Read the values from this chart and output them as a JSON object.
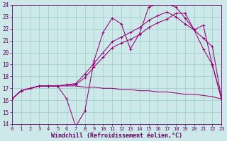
{
  "bg_color": "#cce8e8",
  "grid_color": "#99cccc",
  "line_color": "#990077",
  "xlabel": "Windchill (Refroidissement éolien,°C)",
  "xlim": [
    0,
    23
  ],
  "ylim": [
    14,
    24
  ],
  "yticks": [
    14,
    15,
    16,
    17,
    18,
    19,
    20,
    21,
    22,
    23,
    24
  ],
  "xticks": [
    0,
    1,
    2,
    3,
    4,
    5,
    6,
    7,
    8,
    9,
    10,
    11,
    12,
    13,
    14,
    15,
    16,
    17,
    18,
    19,
    20,
    21,
    22,
    23
  ],
  "line1_x": [
    0,
    1,
    2,
    3,
    4,
    5,
    6,
    7,
    8,
    9,
    10,
    11,
    12,
    13,
    14,
    15,
    16,
    17,
    18,
    19,
    20,
    21,
    22,
    23
  ],
  "line1_y": [
    16.1,
    16.8,
    17.0,
    17.2,
    17.2,
    17.2,
    16.1,
    13.8,
    15.1,
    19.3,
    21.7,
    22.9,
    22.4,
    20.3,
    21.6,
    23.8,
    24.1,
    24.1,
    23.8,
    22.9,
    21.9,
    22.3,
    18.9,
    16.1
  ],
  "line2_x": [
    0,
    1,
    2,
    3,
    4,
    5,
    6,
    7,
    8,
    9,
    10,
    11,
    12,
    13,
    14,
    15,
    16,
    17,
    18,
    19,
    20,
    21,
    22,
    23
  ],
  "line2_y": [
    16.1,
    16.8,
    17.0,
    17.2,
    17.2,
    17.2,
    17.2,
    17.2,
    17.1,
    17.1,
    17.0,
    17.0,
    16.9,
    16.9,
    16.8,
    16.8,
    16.7,
    16.7,
    16.6,
    16.5,
    16.5,
    16.4,
    16.3,
    16.1
  ],
  "line3_x": [
    0,
    1,
    2,
    3,
    4,
    5,
    6,
    7,
    8,
    9,
    10,
    11,
    12,
    13,
    14,
    15,
    16,
    17,
    18,
    19,
    20,
    21,
    22,
    23
  ],
  "line3_y": [
    16.1,
    16.8,
    17.0,
    17.2,
    17.2,
    17.2,
    17.3,
    17.4,
    18.2,
    19.1,
    20.0,
    20.9,
    21.3,
    21.7,
    22.1,
    22.7,
    23.1,
    23.4,
    23.0,
    22.4,
    21.9,
    21.2,
    20.5,
    16.1
  ],
  "line4_x": [
    0,
    1,
    2,
    3,
    4,
    5,
    6,
    7,
    8,
    9,
    10,
    11,
    12,
    13,
    14,
    15,
    16,
    17,
    18,
    19,
    20,
    21,
    22,
    23
  ],
  "line4_y": [
    16.1,
    16.8,
    17.0,
    17.2,
    17.2,
    17.2,
    17.3,
    17.3,
    17.9,
    18.8,
    19.6,
    20.4,
    20.8,
    21.1,
    21.5,
    22.1,
    22.5,
    22.8,
    23.3,
    23.3,
    21.9,
    20.3,
    19.0,
    16.1
  ],
  "tick_color": "#660066",
  "spine_color": "#660066",
  "xlabel_color": "#660066",
  "xlabel_fontsize": 6.0,
  "ytick_fontsize": 5.5,
  "xtick_fontsize": 5.0,
  "lw": 0.75,
  "ms": 2.5,
  "mew": 0.75
}
